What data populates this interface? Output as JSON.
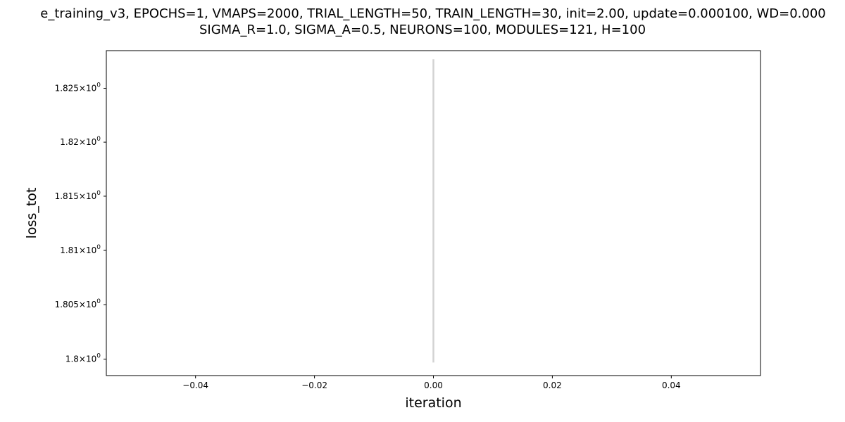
{
  "chart_data": {
    "type": "line",
    "title_lines": [
      "e_training_v3, EPOCHS=1, VMAPS=2000, TRIAL_LENGTH=50, TRAIN_LENGTH=30, init=2.00, update=0.000100, WD=0.000",
      "SIGMA_R=1.0, SIGMA_A=0.5, NEURONS=100, MODULES=121, H=100"
    ],
    "xlabel": "iteration",
    "ylabel": "loss_tot",
    "yscale": "log",
    "xlim": [
      -0.055,
      0.055
    ],
    "ylim": [
      1.7985,
      1.8285
    ],
    "x_ticks": [
      {
        "value": -0.04,
        "label": "−0.04"
      },
      {
        "value": -0.02,
        "label": "−0.02"
      },
      {
        "value": 0.0,
        "label": "0.00"
      },
      {
        "value": 0.02,
        "label": "0.02"
      },
      {
        "value": 0.04,
        "label": "0.04"
      }
    ],
    "y_ticks": [
      {
        "value": 1.8,
        "mantissa": "1.8"
      },
      {
        "value": 1.805,
        "mantissa": "1.805"
      },
      {
        "value": 1.81,
        "mantissa": "1.81"
      },
      {
        "value": 1.815,
        "mantissa": "1.815"
      },
      {
        "value": 1.82,
        "mantissa": "1.82"
      },
      {
        "value": 1.825,
        "mantissa": "1.825"
      }
    ],
    "tick_base": "10",
    "tick_exponent": "0",
    "series": [
      {
        "color": "#d3d3d3",
        "points": [
          {
            "x": 0.0,
            "y": 1.7997
          },
          {
            "x": 0.0,
            "y": 1.8277
          }
        ]
      }
    ],
    "grid": false,
    "legend": "none"
  }
}
